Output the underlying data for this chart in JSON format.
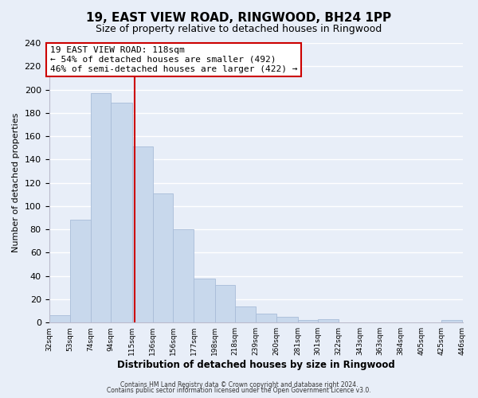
{
  "title": "19, EAST VIEW ROAD, RINGWOOD, BH24 1PP",
  "subtitle": "Size of property relative to detached houses in Ringwood",
  "xlabel": "Distribution of detached houses by size in Ringwood",
  "ylabel": "Number of detached properties",
  "bar_edges": [
    32,
    53,
    74,
    94,
    115,
    136,
    156,
    177,
    198,
    218,
    239,
    260,
    281,
    301,
    322,
    343,
    363,
    384,
    405,
    425,
    446
  ],
  "bar_heights": [
    6,
    88,
    197,
    189,
    151,
    111,
    80,
    38,
    32,
    14,
    8,
    5,
    2,
    3,
    0,
    0,
    0,
    0,
    0,
    2
  ],
  "bar_color": "#c8d8ec",
  "bar_edge_color": "#a8bcd8",
  "property_line_x": 118,
  "property_line_color": "#cc0000",
  "annotation_line1": "19 EAST VIEW ROAD: 118sqm",
  "annotation_line2": "← 54% of detached houses are smaller (492)",
  "annotation_line3": "46% of semi-detached houses are larger (422) →",
  "annotation_box_color": "#ffffff",
  "annotation_box_edge": "#cc0000",
  "ylim": [
    0,
    240
  ],
  "yticks": [
    0,
    20,
    40,
    60,
    80,
    100,
    120,
    140,
    160,
    180,
    200,
    220,
    240
  ],
  "tick_labels": [
    "32sqm",
    "53sqm",
    "74sqm",
    "94sqm",
    "115sqm",
    "136sqm",
    "156sqm",
    "177sqm",
    "198sqm",
    "218sqm",
    "239sqm",
    "260sqm",
    "281sqm",
    "301sqm",
    "322sqm",
    "343sqm",
    "363sqm",
    "384sqm",
    "405sqm",
    "425sqm",
    "446sqm"
  ],
  "footer1": "Contains HM Land Registry data © Crown copyright and database right 2024.",
  "footer2": "Contains public sector information licensed under the Open Government Licence v3.0.",
  "background_color": "#e8eef8",
  "plot_bg_color": "#e8eef8",
  "grid_color": "#ffffff",
  "figsize": [
    6.0,
    5.0
  ],
  "dpi": 100
}
